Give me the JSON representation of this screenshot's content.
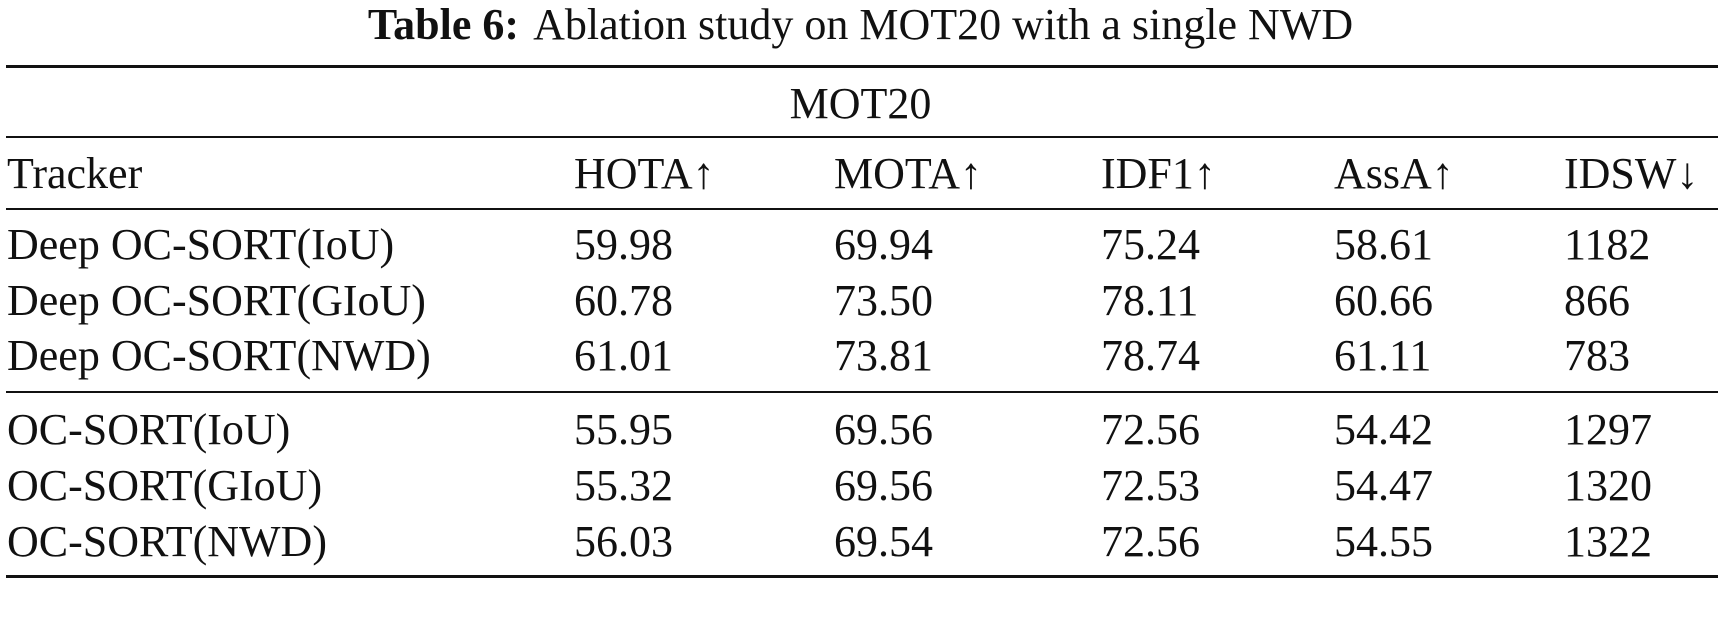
{
  "caption": {
    "label": "Table 6:",
    "text": "Ablation study on MOT20 with a single NWD"
  },
  "table": {
    "group_header": "MOT20",
    "columns": [
      "Tracker",
      "HOTA↑",
      "MOTA↑",
      "IDF1↑",
      "AssA↑",
      "IDSW↓"
    ],
    "groups": [
      {
        "rows": [
          [
            "Deep OC-SORT(IoU)",
            "59.98",
            "69.94",
            "75.24",
            "58.61",
            "1182"
          ],
          [
            "Deep OC-SORT(GIoU)",
            "60.78",
            "73.50",
            "78.11",
            "60.66",
            "866"
          ],
          [
            "Deep OC-SORT(NWD)",
            "61.01",
            "73.81",
            "78.74",
            "61.11",
            "783"
          ]
        ]
      },
      {
        "rows": [
          [
            "OC-SORT(IoU)",
            "55.95",
            "69.56",
            "72.56",
            "54.42",
            "1297"
          ],
          [
            "OC-SORT(GIoU)",
            "55.32",
            "69.56",
            "72.53",
            "54.47",
            "1320"
          ],
          [
            "OC-SORT(NWD)",
            "56.03",
            "69.54",
            "72.56",
            "54.55",
            "1322"
          ]
        ]
      }
    ]
  }
}
